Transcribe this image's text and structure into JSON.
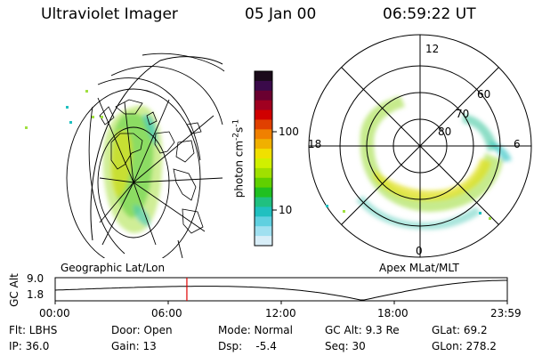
{
  "header": {
    "title": "Ultraviolet Imager",
    "date": "05 Jan 00",
    "time": "06:59:22 UT"
  },
  "panels": {
    "left_caption": "Geographic Lat/Lon",
    "right_caption": "Apex MLat/MLT"
  },
  "colorbar": {
    "unit_label": "photon cm",
    "unit_exp1": "-2",
    "unit_mid": "s",
    "unit_exp2": "-1",
    "ticks": [
      {
        "label": "100"
      },
      {
        "label": "10"
      }
    ],
    "colors": [
      "#1a0a1a",
      "#3a0a4a",
      "#6a0030",
      "#a00020",
      "#d00000",
      "#e04000",
      "#f08000",
      "#f0b000",
      "#f0e000",
      "#d0f000",
      "#a0e000",
      "#60d000",
      "#20c020",
      "#20c080",
      "#20c0c0",
      "#60d0e0",
      "#a0e0f0",
      "#d8eef8"
    ]
  },
  "polar_labels": {
    "mlt_top": "12",
    "mlt_left": "18",
    "mlt_right": "6",
    "mlt_bottom": "0",
    "lat_60": "60",
    "lat_70": "70",
    "lat_80": "80"
  },
  "timeline": {
    "ylabel": "GC Alt",
    "y_high": "9.0",
    "y_low": "1.8",
    "x_ticks": [
      "00:00",
      "06:00",
      "12:00",
      "18:00",
      "23:59"
    ],
    "marker_time_hours": 6.99
  },
  "info": {
    "flt": "Flt: LBHS",
    "ip": "IP: 36.0",
    "door": "Door: Open",
    "gain": "Gain: 13",
    "mode": "Mode: Normal",
    "dsp": "Dsp:    -5.4",
    "gcalt": "GC Alt: 9.3 Re",
    "seq": "Seq: 30",
    "glat": "GLat:  69.2",
    "glon": "GLon: 278.2"
  },
  "colors": {
    "marker": "#e00000",
    "grid": "#000000"
  }
}
